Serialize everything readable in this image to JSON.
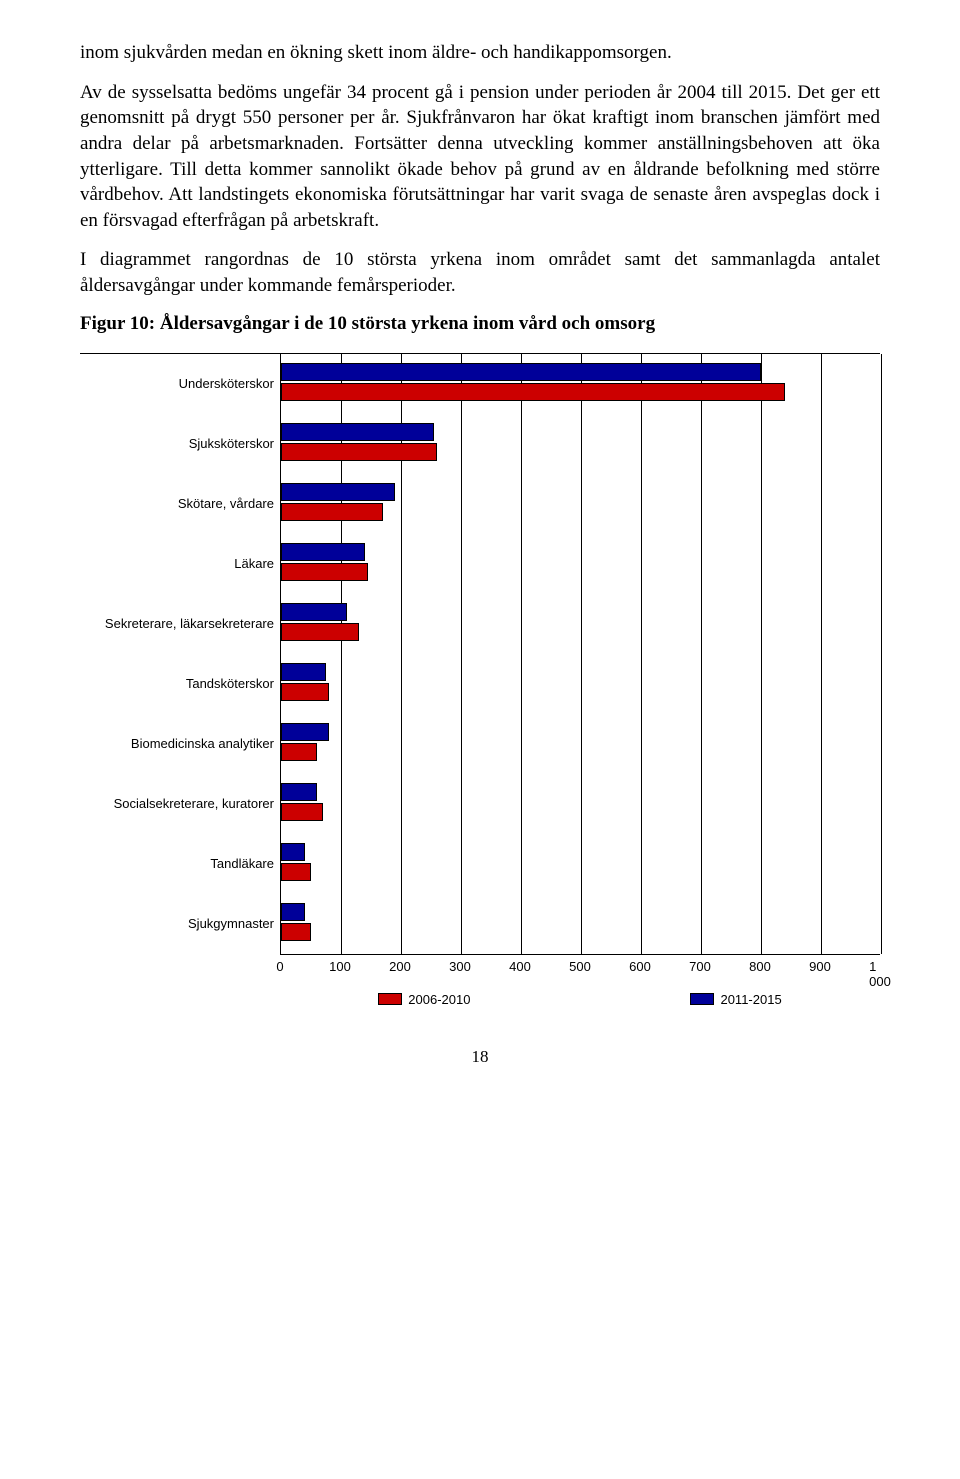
{
  "paragraphs": {
    "p1": "inom sjukvården medan en ökning skett inom äldre- och handikappomsorgen.",
    "p2": "Av de sysselsatta bedöms ungefär 34 procent gå i pension under perioden år 2004 till 2015. Det ger ett genomsnitt på drygt 550 personer per år. Sjukfrånvaron har ökat kraftigt inom branschen jämfört med andra delar på arbetsmarknaden. Fortsätter denna utveckling kommer anställningsbehoven att öka ytterligare. Till detta kommer sannolikt ökade behov på grund av en åldrande befolkning med större vårdbehov. Att landstingets ekonomiska förutsättningar har varit svaga de senaste åren avspeglas dock i en försvagad efterfrågan på arbetskraft.",
    "p3": "I diagrammet rangordnas de 10 största yrkena inom området samt det sammanlagda antalet åldersavgångar under kommande femårsperioder."
  },
  "chart_title": "Figur 10: Åldersavgångar i de 10 största yrkena inom vård och omsorg",
  "chart": {
    "type": "bar",
    "xmax": 1000,
    "xtick_step": 100,
    "xticks": [
      "0",
      "100",
      "200",
      "300",
      "400",
      "500",
      "600",
      "700",
      "800",
      "900",
      "1 000"
    ],
    "colors": {
      "series_a": "#000099",
      "series_b": "#cc0000",
      "border": "#000000",
      "grid": "#000000",
      "bg": "#ffffff"
    },
    "categories": [
      {
        "label": "Undersköterskor",
        "a": 800,
        "b": 840
      },
      {
        "label": "Sjuksköterskor",
        "a": 255,
        "b": 260
      },
      {
        "label": "Skötare, vårdare",
        "a": 190,
        "b": 170
      },
      {
        "label": "Läkare",
        "a": 140,
        "b": 145
      },
      {
        "label": "Sekreterare, läkarsekreterare",
        "a": 110,
        "b": 130
      },
      {
        "label": "Tandsköterskor",
        "a": 75,
        "b": 80
      },
      {
        "label": "Biomedicinska analytiker",
        "a": 80,
        "b": 60
      },
      {
        "label": "Socialsekreterare, kuratorer",
        "a": 60,
        "b": 70
      },
      {
        "label": "Tandläkare",
        "a": 40,
        "b": 50
      },
      {
        "label": "Sjukgymnaster",
        "a": 40,
        "b": 50
      }
    ],
    "legend": {
      "a": "2011-2015",
      "b": "2006-2010"
    }
  },
  "page_number": "18"
}
